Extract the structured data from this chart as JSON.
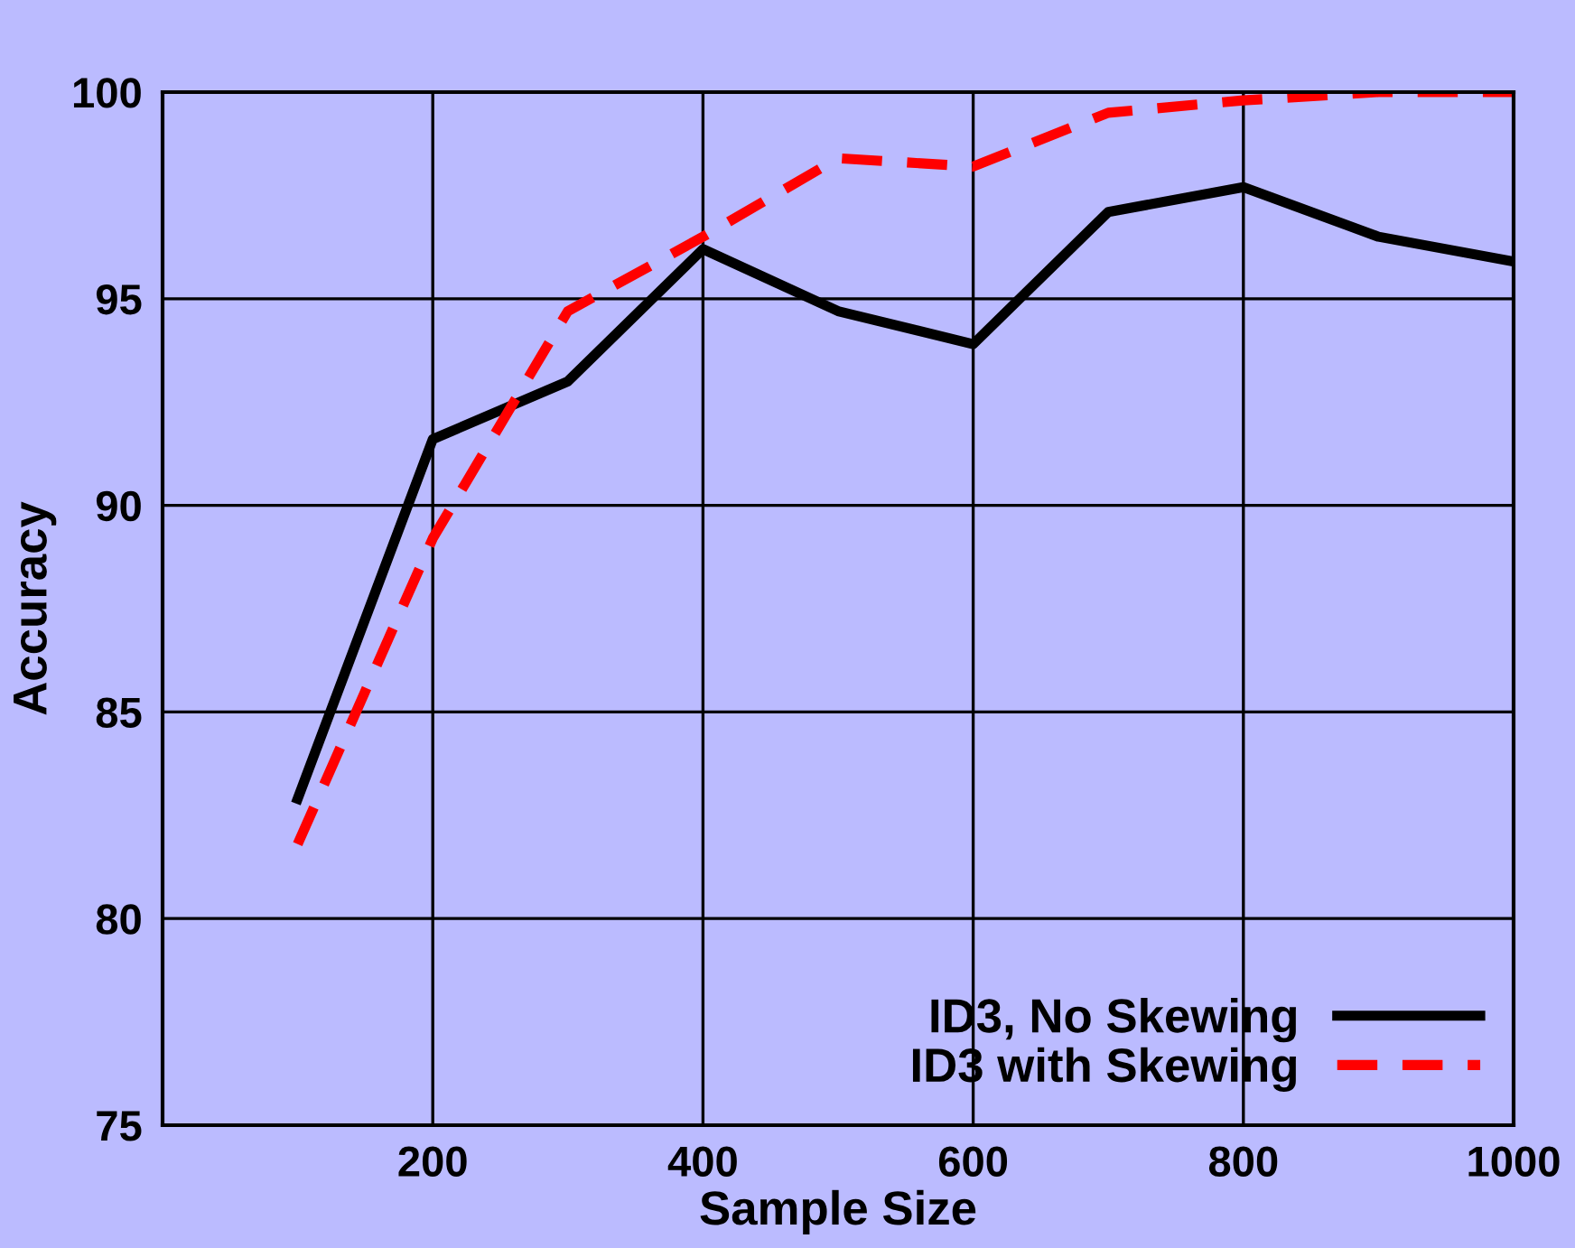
{
  "chart_data": {
    "type": "line",
    "xlabel": "Sample Size",
    "ylabel": "Accuracy",
    "x": [
      100,
      200,
      300,
      400,
      500,
      600,
      700,
      800,
      900,
      1000
    ],
    "series": [
      {
        "name": "ID3, No Skewing",
        "color": "#000000",
        "line_style": "solid",
        "values": [
          82.9,
          91.6,
          93.0,
          96.2,
          94.7,
          93.9,
          97.1,
          97.7,
          96.5,
          95.9
        ]
      },
      {
        "name": "ID3 with Skewing",
        "color": "#ff0000",
        "line_style": "dashed",
        "values": [
          81.8,
          89.2,
          94.7,
          96.5,
          98.4,
          98.2,
          99.5,
          99.8,
          100.0,
          100.0
        ]
      }
    ],
    "xlim": [
      0,
      1000
    ],
    "xticks": [
      200,
      400,
      600,
      800,
      1000
    ],
    "ylim": [
      75,
      100
    ],
    "yticks": [
      75,
      80,
      85,
      90,
      95,
      100
    ],
    "grid": true,
    "legend": "bottom right",
    "marker": "none"
  }
}
